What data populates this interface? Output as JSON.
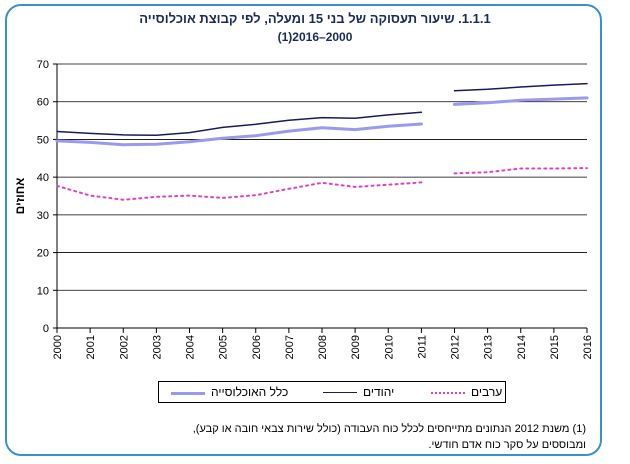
{
  "title": "1.1.1. שיעור תעסוקה של בני 15 ומעלה, לפי קבוצת אוכלוסייה",
  "subtitle": "2000–2016(1)",
  "footnote_lines": [
    "(1) משנת 2012 הנתונים מתייחסים לכלל כוח העבודה (כולל שירות צבאי חובה או קבע),",
    "ומבוססים על סקר כוח אדם חודשי."
  ],
  "colors": {
    "border": "#3b8fd0",
    "total": "#9999ee",
    "jews": "#1a1a5e",
    "arabs": "#e040c8"
  },
  "chart_data": {
    "type": "line",
    "x": [
      "2000",
      "2001",
      "2002",
      "2003",
      "2004",
      "2005",
      "2006",
      "2007",
      "2008",
      "2009",
      "2010",
      "2011",
      "2012",
      "2013",
      "2014",
      "2015",
      "2016"
    ],
    "ylabel": "אחוזים",
    "ylim": [
      0,
      70
    ],
    "yticks": [
      0,
      10,
      20,
      30,
      40,
      50,
      60,
      70
    ],
    "grid": true,
    "legend_position": "bottom",
    "break_after": "2011",
    "series": [
      {
        "name": "כלל האוכלוסייה",
        "color": "#9999ee",
        "style": "thick",
        "values": [
          49.6,
          49.2,
          48.6,
          48.7,
          49.4,
          50.3,
          51.0,
          52.2,
          53.1,
          52.6,
          53.5,
          54.1,
          59.3,
          59.7,
          60.4,
          60.7,
          61.0
        ]
      },
      {
        "name": "יהודים",
        "color": "#1a1a5e",
        "style": "thin",
        "values": [
          52.1,
          51.6,
          51.2,
          51.1,
          51.8,
          53.2,
          54.0,
          55.1,
          55.8,
          55.6,
          56.5,
          57.2,
          62.9,
          63.3,
          63.9,
          64.4,
          64.8
        ]
      },
      {
        "name": "ערבים",
        "color": "#e040c8",
        "style": "dotted",
        "values": [
          37.7,
          35.1,
          34.0,
          34.8,
          35.1,
          34.5,
          35.2,
          36.9,
          38.5,
          37.4,
          38.0,
          38.6,
          41.0,
          41.3,
          42.3,
          42.3,
          42.4
        ]
      }
    ]
  }
}
